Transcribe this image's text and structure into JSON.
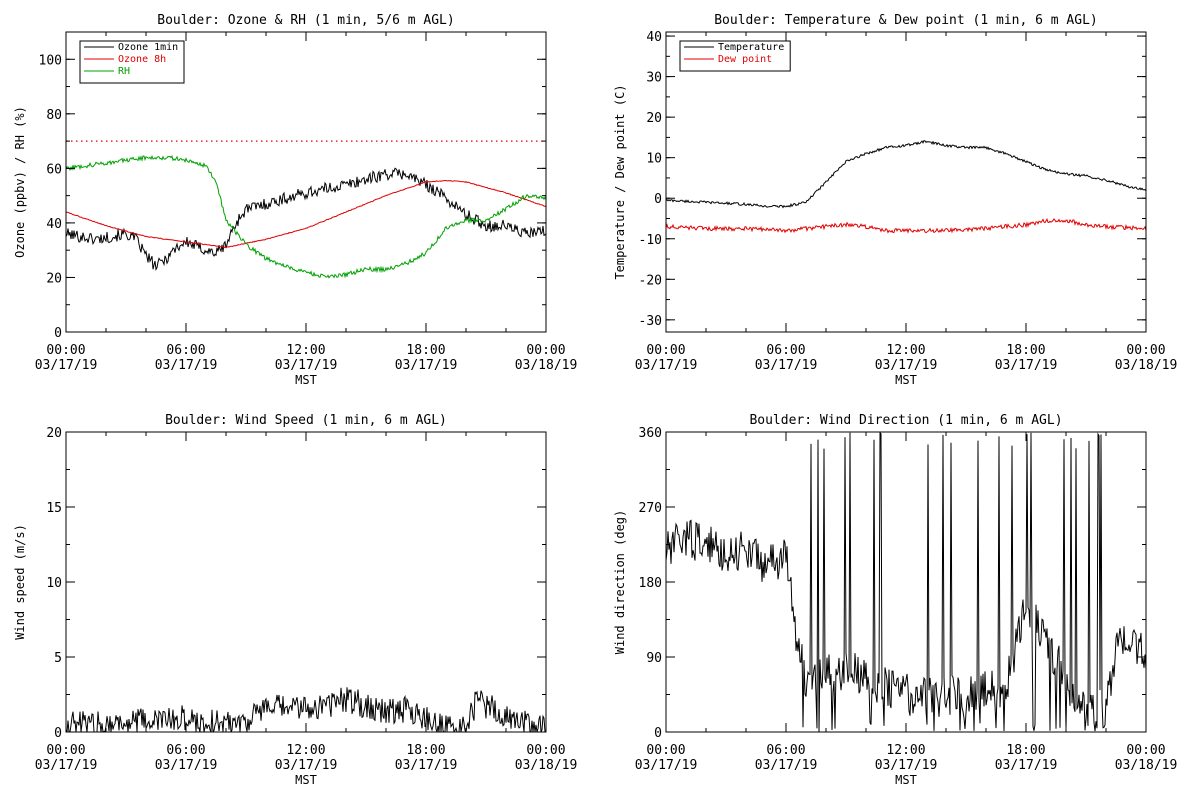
{
  "chart_data": [
    {
      "type": "line",
      "title": "Boulder: Ozone & RH (1 min, 5/6 m AGL)",
      "xlabel": "MST",
      "ylabel": "Ozone (ppbv) / RH (%)",
      "ylim": [
        0,
        110
      ],
      "y_ticks": [
        "0",
        "20",
        "40",
        "60",
        "80",
        "100"
      ],
      "xlim": [
        "00:00 03/17/19",
        "00:00 03/18/19"
      ],
      "x_ticks": [
        {
          "time": "00:00",
          "date": "03/17/19"
        },
        {
          "time": "06:00",
          "date": "03/17/19"
        },
        {
          "time": "12:00",
          "date": "03/17/19"
        },
        {
          "time": "18:00",
          "date": "03/17/19"
        },
        {
          "time": "00:00",
          "date": "03/18/19"
        }
      ],
      "legend": "top-left",
      "reference_line": {
        "y": 70,
        "color": "#e00000",
        "style": "dotted"
      },
      "series": [
        {
          "name": "Ozone 1min",
          "color": "#000000",
          "noise": 2.2,
          "spiky": false,
          "x": [
            "00:00",
            "01:30",
            "03:00",
            "03:30",
            "04:00",
            "04:30",
            "05:00",
            "05:30",
            "06:00",
            "07:00",
            "07:30",
            "08:00",
            "08:30",
            "09:00",
            "10:00",
            "12:00",
            "14:00",
            "16:00",
            "17:00",
            "18:00",
            "18:30",
            "19:00",
            "20:00",
            "21:00",
            "22:00",
            "23:00",
            "24:00"
          ],
          "y": [
            36,
            34,
            36,
            34,
            28,
            24,
            27,
            31,
            33,
            30,
            29,
            32,
            40,
            45,
            47,
            51,
            54,
            58,
            58,
            54,
            52,
            49,
            43,
            39,
            39,
            36,
            37
          ]
        },
        {
          "name": "Ozone 8h",
          "color": "#e00000",
          "noise": 0.15,
          "spiky": false,
          "x": [
            "00:00",
            "02:00",
            "04:00",
            "06:00",
            "08:00",
            "10:00",
            "12:00",
            "14:00",
            "16:00",
            "18:00",
            "19:00",
            "20:00",
            "22:00",
            "24:00"
          ],
          "y": [
            44,
            39,
            35,
            33,
            31,
            34,
            38,
            44,
            50,
            55,
            55.5,
            55,
            51,
            46
          ]
        },
        {
          "name": "RH",
          "color": "#00a000",
          "noise": 0.8,
          "spiky": false,
          "x": [
            "00:00",
            "02:00",
            "04:00",
            "05:00",
            "06:00",
            "07:00",
            "07:30",
            "08:00",
            "09:00",
            "10:00",
            "11:00",
            "12:00",
            "13:00",
            "14:00",
            "15:00",
            "16:00",
            "17:00",
            "18:00",
            "19:00",
            "20:00",
            "21:00",
            "22:00",
            "23:00",
            "24:00"
          ],
          "y": [
            60,
            62,
            64,
            64,
            63,
            61,
            55,
            41,
            32,
            27,
            24,
            22,
            20,
            21,
            23,
            23,
            25,
            29,
            38,
            41,
            41,
            45,
            50,
            49
          ]
        }
      ]
    },
    {
      "type": "line",
      "title": "Boulder: Temperature & Dew point (1 min, 6 m AGL)",
      "xlabel": "MST",
      "ylabel": "Temperature / Dew point (C)",
      "ylim": [
        -33,
        41
      ],
      "y_ticks": [
        "-30",
        "-20",
        "-10",
        "0",
        "10",
        "20",
        "30",
        "40"
      ],
      "xlim": [
        "00:00 03/17/19",
        "00:00 03/18/19"
      ],
      "x_ticks": [
        {
          "time": "00:00",
          "date": "03/17/19"
        },
        {
          "time": "06:00",
          "date": "03/17/19"
        },
        {
          "time": "12:00",
          "date": "03/17/19"
        },
        {
          "time": "18:00",
          "date": "03/17/19"
        },
        {
          "time": "00:00",
          "date": "03/18/19"
        }
      ],
      "legend": "top-left",
      "series": [
        {
          "name": "Temperature",
          "color": "#000000",
          "noise": 0.3,
          "spiky": false,
          "x": [
            "00:00",
            "02:00",
            "04:00",
            "05:00",
            "06:00",
            "07:00",
            "08:00",
            "09:00",
            "10:00",
            "11:00",
            "12:00",
            "13:00",
            "14:00",
            "15:00",
            "16:00",
            "17:00",
            "18:00",
            "19:00",
            "20:00",
            "21:00",
            "22:00",
            "23:00",
            "24:00"
          ],
          "y": [
            -0.5,
            -1,
            -1.5,
            -2,
            -2,
            -1,
            4,
            9,
            11,
            12.5,
            13,
            14,
            13,
            12.5,
            12.5,
            11,
            9,
            7,
            6,
            5.5,
            4.5,
            3,
            2
          ]
        },
        {
          "name": "Dew point",
          "color": "#e00000",
          "noise": 0.5,
          "spiky": false,
          "x": [
            "00:00",
            "02:00",
            "04:00",
            "06:00",
            "07:00",
            "08:00",
            "09:00",
            "10:00",
            "11:00",
            "12:00",
            "14:00",
            "16:00",
            "18:00",
            "19:00",
            "20:00",
            "21:00",
            "22:00",
            "24:00"
          ],
          "y": [
            -7,
            -7.5,
            -7.5,
            -8,
            -7.5,
            -7,
            -6.5,
            -7,
            -8,
            -8,
            -8,
            -7.5,
            -6.5,
            -5.5,
            -5.5,
            -6.5,
            -7,
            -7.5
          ]
        }
      ]
    },
    {
      "type": "line",
      "title": "Boulder: Wind Speed (1 min, 6 m AGL)",
      "xlabel": "MST",
      "ylabel": "Wind speed (m/s)",
      "ylim": [
        0,
        20
      ],
      "y_ticks": [
        "0",
        "5",
        "10",
        "15",
        "20"
      ],
      "xlim": [
        "00:00 03/17/19",
        "00:00 03/18/19"
      ],
      "x_ticks": [
        {
          "time": "00:00",
          "date": "03/17/19"
        },
        {
          "time": "06:00",
          "date": "03/17/19"
        },
        {
          "time": "12:00",
          "date": "03/17/19"
        },
        {
          "time": "18:00",
          "date": "03/17/19"
        },
        {
          "time": "00:00",
          "date": "03/18/19"
        }
      ],
      "series": [
        {
          "name": "",
          "color": "#000000",
          "noise": 0.9,
          "spiky": false,
          "min": 0,
          "x": [
            "00:00",
            "03:00",
            "04:00",
            "06:00",
            "07:00",
            "09:00",
            "10:00",
            "12:00",
            "13:00",
            "14:00",
            "16:00",
            "17:00",
            "19:00",
            "20:00",
            "20:30",
            "21:00",
            "22:00",
            "23:00",
            "24:00"
          ],
          "y": [
            0.5,
            0.6,
            0.7,
            0.9,
            0.6,
            0.8,
            1.6,
            1.6,
            1.8,
            2.2,
            1.4,
            1.5,
            0.3,
            0.2,
            2.0,
            1.8,
            1.0,
            0.5,
            0.3
          ]
        }
      ]
    },
    {
      "type": "line",
      "title": "Boulder: Wind Direction (1 min, 6 m AGL)",
      "xlabel": "MST",
      "ylabel": "Wind direction (deg)",
      "ylim": [
        0,
        360
      ],
      "y_ticks": [
        "0",
        "90",
        "180",
        "270",
        "360"
      ],
      "xlim": [
        "00:00 03/17/19",
        "00:00 03/18/19"
      ],
      "x_ticks": [
        {
          "time": "00:00",
          "date": "03/17/19"
        },
        {
          "time": "06:00",
          "date": "03/17/19"
        },
        {
          "time": "12:00",
          "date": "03/17/19"
        },
        {
          "time": "18:00",
          "date": "03/17/19"
        },
        {
          "time": "00:00",
          "date": "03/18/19"
        }
      ],
      "series": [
        {
          "name": "",
          "color": "#000000",
          "noise": 25,
          "spiky": true,
          "min": 0,
          "max": 360,
          "x": [
            "00:00",
            "01:00",
            "02:00",
            "03:00",
            "04:00",
            "05:00",
            "06:00",
            "06:30",
            "07:00",
            "08:00",
            "09:00",
            "10:00",
            "11:00",
            "12:00",
            "13:00",
            "14:00",
            "15:00",
            "16:00",
            "17:00",
            "18:00",
            "19:00",
            "20:00",
            "21:00",
            "22:00",
            "22:30",
            "23:00",
            "24:00"
          ],
          "y": [
            215,
            235,
            225,
            215,
            220,
            200,
            210,
            120,
            60,
            70,
            75,
            65,
            55,
            45,
            40,
            45,
            40,
            50,
            55,
            150,
            115,
            60,
            25,
            30,
            100,
            120,
            90
          ]
        }
      ]
    }
  ]
}
